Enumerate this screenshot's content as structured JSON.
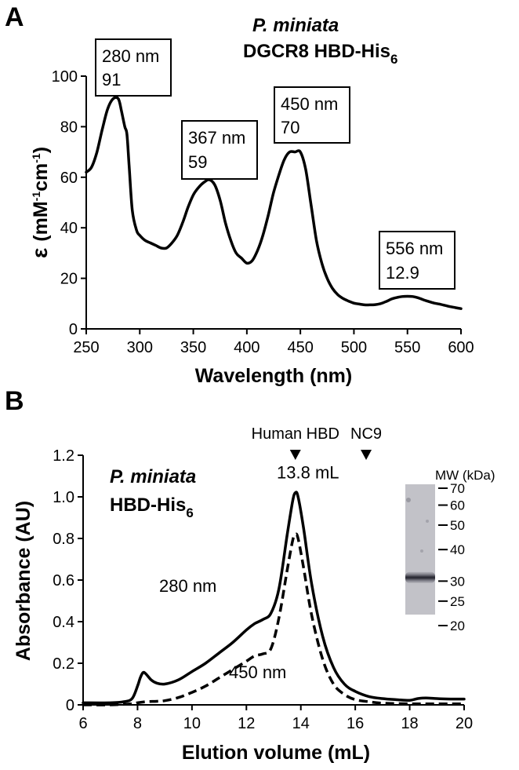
{
  "panels": {
    "a": {
      "letter": "A",
      "species": "P. miniata",
      "construct_main": "DGCR8 HBD-His",
      "construct_sub": "6"
    },
    "b": {
      "letter": "B",
      "species": "P. miniata",
      "construct_main": "HBD-His",
      "construct_sub": "6",
      "markers": [
        {
          "label": "Human HBD",
          "x": 13.8
        },
        {
          "label": "NC9",
          "x": 16.4
        }
      ],
      "gel": {
        "title": "MW (kDa)",
        "ladder": [
          70,
          60,
          50,
          40,
          30,
          25,
          20
        ],
        "band_kda": 31
      }
    }
  },
  "chart_data": [
    {
      "type": "line",
      "title": "",
      "xlabel": "Wavelength (nm)",
      "ylabel_symbol": "ε",
      "ylabel_unit": "(mM",
      "ylabel_sup1": "-1",
      "ylabel_mid": "cm",
      "ylabel_sup2": "-1",
      "ylabel_close": ")",
      "xlim": [
        250,
        600
      ],
      "ylim": [
        0,
        100
      ],
      "xticks": [
        250,
        300,
        350,
        400,
        450,
        500,
        550,
        600
      ],
      "yticks": [
        0,
        20,
        40,
        60,
        80,
        100
      ],
      "series": [
        {
          "x": [
            250,
            255,
            260,
            265,
            270,
            275,
            280,
            283,
            286,
            288,
            290,
            293,
            297,
            300,
            305,
            310,
            315,
            320,
            325,
            330,
            335,
            340,
            345,
            350,
            355,
            360,
            365,
            370,
            375,
            380,
            385,
            390,
            395,
            400,
            405,
            410,
            415,
            420,
            425,
            430,
            435,
            440,
            445,
            450,
            455,
            460,
            465,
            470,
            475,
            480,
            485,
            490,
            495,
            500,
            505,
            510,
            515,
            520,
            525,
            530,
            535,
            540,
            545,
            550,
            555,
            560,
            565,
            570,
            575,
            580,
            585,
            590,
            595,
            600
          ],
          "y": [
            62,
            64,
            70,
            79,
            87,
            91,
            91,
            86,
            80,
            77,
            65,
            47,
            39,
            37,
            35,
            34,
            33,
            32,
            32,
            34,
            37,
            42,
            48,
            53,
            56,
            58,
            59,
            57,
            51,
            42,
            35,
            30,
            28,
            26,
            27,
            31,
            37,
            45,
            54,
            61,
            67,
            70,
            70,
            70,
            63,
            49,
            35,
            26,
            20,
            16,
            13.5,
            12,
            11,
            10.2,
            9.8,
            9.5,
            9.5,
            9.6,
            10,
            10.8,
            11.8,
            12.4,
            12.8,
            12.9,
            12.8,
            12.3,
            11.5,
            10.8,
            10.2,
            9.8,
            9.3,
            8.8,
            8.4,
            8
          ]
        }
      ],
      "annotations": [
        {
          "line1": "280 nm",
          "line2": "91"
        },
        {
          "line1": "367 nm",
          "line2": "59"
        },
        {
          "line1": "450 nm",
          "line2": "70"
        },
        {
          "line1": "556 nm",
          "line2": "12.9"
        }
      ]
    },
    {
      "type": "line",
      "title": "",
      "xlabel": "Elution volume (mL)",
      "ylabel": "Absorbance (AU)",
      "xlim": [
        6,
        20
      ],
      "ylim": [
        0,
        1.2
      ],
      "xticks": [
        6,
        8,
        10,
        12,
        14,
        16,
        18,
        20
      ],
      "yticks": [
        "0",
        "0.2",
        "0.4",
        "0.6",
        "0.8",
        "1.0",
        "1.2"
      ],
      "peak_label": "13.8 mL",
      "series": [
        {
          "name": "280 nm",
          "style": "solid",
          "x": [
            6,
            7,
            7.5,
            7.8,
            8.0,
            8.1,
            8.2,
            8.3,
            8.5,
            8.7,
            9.0,
            9.5,
            10,
            10.5,
            11,
            11.5,
            12,
            12.3,
            12.6,
            12.9,
            13.2,
            13.5,
            13.7,
            13.8,
            13.9,
            14.1,
            14.4,
            14.8,
            15.2,
            15.6,
            16,
            16.5,
            17,
            17.5,
            18,
            18.3,
            18.6,
            19,
            19.5,
            20
          ],
          "y": [
            0.01,
            0.01,
            0.015,
            0.03,
            0.09,
            0.13,
            0.155,
            0.15,
            0.12,
            0.105,
            0.1,
            0.12,
            0.16,
            0.2,
            0.25,
            0.3,
            0.36,
            0.39,
            0.41,
            0.44,
            0.56,
            0.82,
            0.98,
            1.02,
            1.0,
            0.85,
            0.58,
            0.33,
            0.18,
            0.1,
            0.065,
            0.04,
            0.03,
            0.025,
            0.022,
            0.03,
            0.033,
            0.03,
            0.028,
            0.028
          ]
        },
        {
          "name": "450 nm",
          "style": "dashed",
          "x": [
            6,
            7,
            7.8,
            8.0,
            8.3,
            8.7,
            9.0,
            9.5,
            10,
            10.5,
            11,
            11.5,
            12,
            12.3,
            12.6,
            12.9,
            13.2,
            13.5,
            13.7,
            13.8,
            13.9,
            14.1,
            14.4,
            14.8,
            15.2,
            15.6,
            16,
            16.5,
            17,
            18,
            19,
            20
          ],
          "y": [
            0.0,
            0.0,
            0.005,
            0.01,
            0.015,
            0.017,
            0.02,
            0.035,
            0.06,
            0.09,
            0.13,
            0.17,
            0.21,
            0.235,
            0.245,
            0.27,
            0.42,
            0.65,
            0.79,
            0.82,
            0.8,
            0.66,
            0.43,
            0.22,
            0.1,
            0.05,
            0.025,
            0.015,
            0.008,
            0.005,
            0.005,
            0.005
          ]
        }
      ]
    }
  ]
}
